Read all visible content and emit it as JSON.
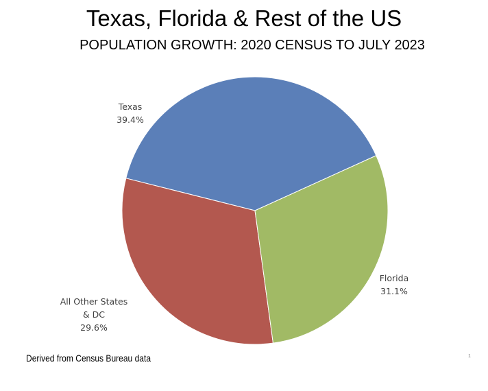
{
  "slide": {
    "title": "Texas, Florida & Rest of the US",
    "subtitle": "POPULATION GROWTH: 2020 CENSUS TO JULY 2023",
    "footnote": "Derived from Census Bureau data",
    "page_number": "1"
  },
  "chart_data": {
    "type": "pie",
    "title": "Texas, Florida & Rest of the US",
    "subtitle": "POPULATION GROWTH: 2020 CENSUS TO JULY 2023",
    "slices": [
      {
        "label_lines": [
          "Texas"
        ],
        "percent_label": "39.4%",
        "value": 39.4,
        "color": "#5b7fb8"
      },
      {
        "label_lines": [
          "Florida"
        ],
        "percent_label": "31.1%",
        "value": 31.1,
        "color": "#b3584f"
      },
      {
        "label_lines": [
          "All Other States",
          "& DC"
        ],
        "percent_label": "29.6%",
        "value": 29.6,
        "color": "#a1ba65"
      }
    ],
    "legend": "none",
    "data_labels": "outside"
  }
}
